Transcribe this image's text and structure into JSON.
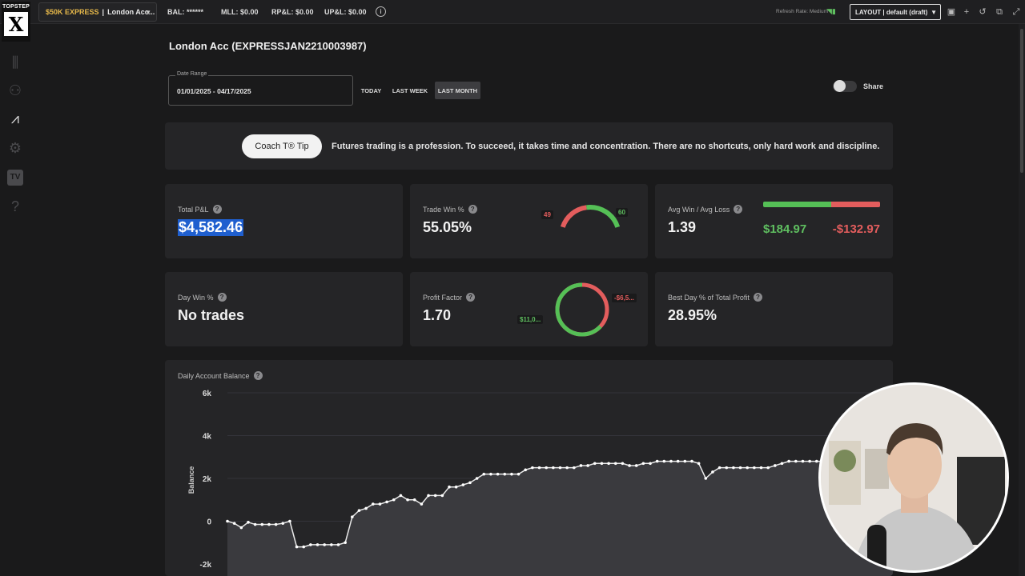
{
  "topbar": {
    "brand": "TOPSTEP",
    "logo_letter": "X",
    "account_type": "$50K EXPRESS",
    "account_sep": "|",
    "account_name": "London Acc...",
    "bal": "BAL: ******",
    "mll": "MLL: $0.00",
    "rpl": "RP&L: $0.00",
    "upl": "UP&L: $0.00",
    "refresh_rate": "Refresh Rate: Medium",
    "layout": "LAYOUT | default (draft)"
  },
  "page": {
    "title": "London Acc (EXPRESSJAN2210003987)",
    "date_range_label": "Date Range",
    "date_range_value": "01/01/2025 - 04/17/2025",
    "buttons": {
      "today": "TODAY",
      "last_week": "LAST WEEK",
      "last_month": "LAST MONTH"
    },
    "share_label": "Share"
  },
  "tip": {
    "button": "Coach T® Tip",
    "text": "Futures trading is a profession. To succeed, it takes time and concentration. There are no shortcuts, only hard work and discipline."
  },
  "cards": {
    "total_pnl": {
      "label": "Total P&L",
      "value": "$4,582.46"
    },
    "trade_win": {
      "label": "Trade Win %",
      "value": "55.05%",
      "losses": "49",
      "wins": "60",
      "win_fraction": 0.5505
    },
    "avg_win_loss": {
      "label": "Avg Win / Avg Loss",
      "value": "1.39",
      "avg_win": "$184.97",
      "avg_loss": "-$132.97",
      "win_fraction": 0.582
    },
    "day_win": {
      "label": "Day Win %",
      "value": "No trades"
    },
    "profit_factor": {
      "label": "Profit Factor",
      "value": "1.70",
      "gross_profit": "$11,0...",
      "gross_loss": "-$6,5...",
      "profit_fraction": 0.63
    },
    "best_day": {
      "label": "Best Day % of Total Profit",
      "value": "28.95%"
    }
  },
  "colors": {
    "win": "#55c056",
    "loss": "#e35d5d",
    "accent_gold": "#e6b84a",
    "highlight": "#1f5fcf"
  },
  "chart_data": {
    "type": "line",
    "title": "Daily Account Balance",
    "ylabel": "Balance",
    "yticks": [
      "6k",
      "4k",
      "2k",
      "0",
      "-2k"
    ],
    "ylim": [
      -2000,
      6000
    ],
    "grid": true,
    "values": [
      0,
      -100,
      -300,
      -50,
      -150,
      -150,
      -150,
      -150,
      -100,
      0,
      -1200,
      -1200,
      -1100,
      -1100,
      -1100,
      -1100,
      -1100,
      -1000,
      200,
      500,
      600,
      800,
      800,
      900,
      1000,
      1200,
      1000,
      1000,
      800,
      1200,
      1200,
      1200,
      1600,
      1600,
      1700,
      1800,
      2000,
      2200,
      2200,
      2200,
      2200,
      2200,
      2200,
      2400,
      2500,
      2500,
      2500,
      2500,
      2500,
      2500,
      2500,
      2600,
      2600,
      2700,
      2700,
      2700,
      2700,
      2700,
      2600,
      2600,
      2700,
      2700,
      2800,
      2800,
      2800,
      2800,
      2800,
      2800,
      2700,
      2000,
      2300,
      2500,
      2500,
      2500,
      2500,
      2500,
      2500,
      2500,
      2500,
      2600,
      2700,
      2800,
      2800,
      2800,
      2800,
      2800,
      2800,
      3000,
      3400,
      3700,
      4000,
      4200,
      4300,
      4400,
      4500,
      4600,
      4600
    ]
  }
}
